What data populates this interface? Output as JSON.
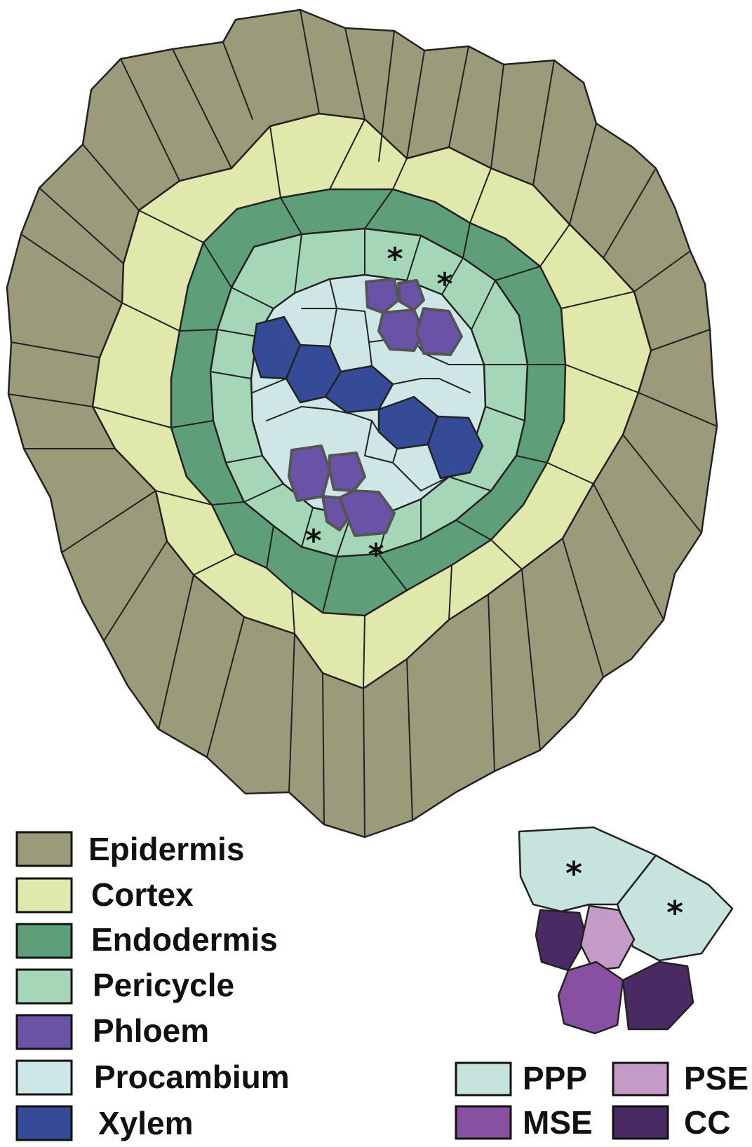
{
  "colors": {
    "epidermis": "#9b9a7b",
    "cortex": "#e1e8ac",
    "endodermis": "#5e9e78",
    "pericycle": "#a5d6b7",
    "phloem": "#6a52a6",
    "procambium": "#cfe6e6",
    "xylem": "#354b98",
    "ppp": "#c7e3dd",
    "pse": "#c39bc6",
    "mse": "#8750a0",
    "cc": "#4a2a63",
    "outline": "#222222"
  },
  "asterisk": "*",
  "legend_main": [
    {
      "key": "epidermis",
      "label": "Epidermis"
    },
    {
      "key": "cortex",
      "label": "Cortex"
    },
    {
      "key": "endodermis",
      "label": "Endodermis"
    },
    {
      "key": "pericycle",
      "label": "Pericycle"
    },
    {
      "key": "phloem",
      "label": "Phloem"
    },
    {
      "key": "procambium",
      "label": "Procambium"
    },
    {
      "key": "xylem",
      "label": "Xylem"
    }
  ],
  "legend_phloem": [
    {
      "key": "ppp",
      "label": "PPP"
    },
    {
      "key": "pse",
      "label": "PSE"
    },
    {
      "key": "mse",
      "label": "MSE"
    },
    {
      "key": "cc",
      "label": "CC"
    }
  ]
}
